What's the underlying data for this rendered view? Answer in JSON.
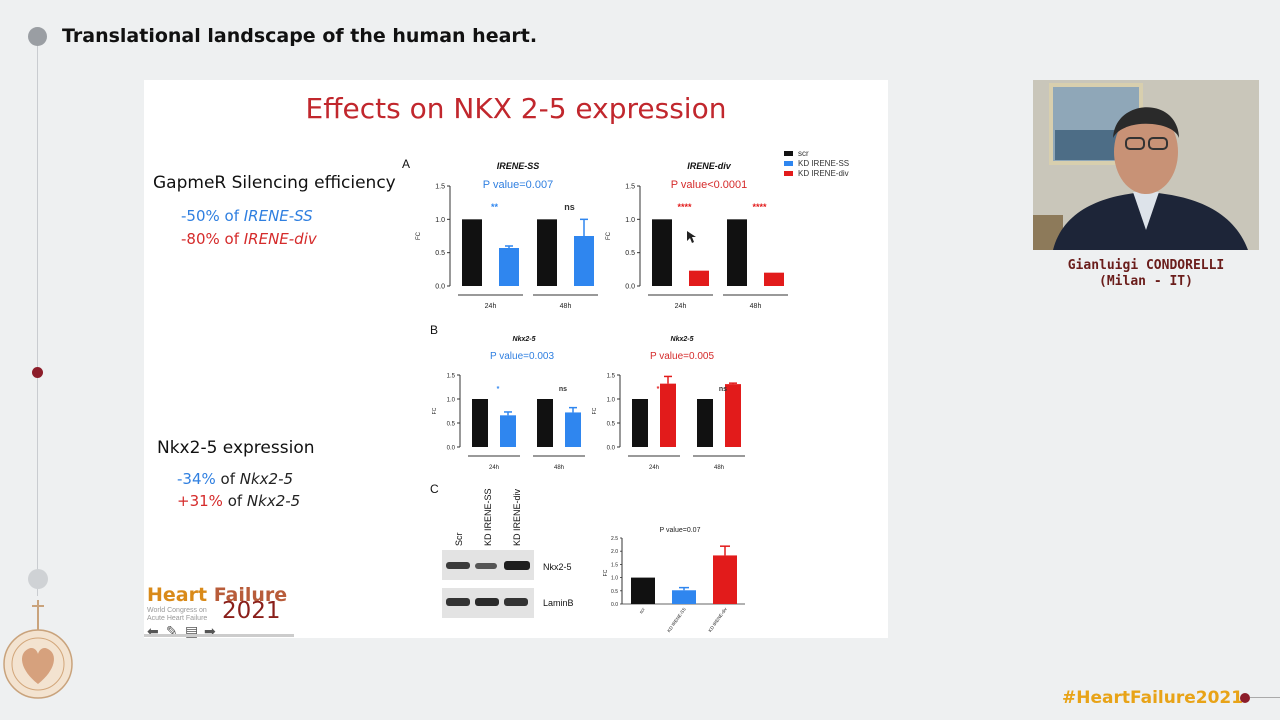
{
  "header": {
    "title": "Translational landscape of the human heart."
  },
  "slide": {
    "title": "Effects on NKX 2-5 expression",
    "gapmer": {
      "heading": "GapmeR Silencing efficiency",
      "line1_value": "-50% of ",
      "line1_gene": "IRENE-SS",
      "line2_value": "-80% of ",
      "line2_gene": "IRENE-div"
    },
    "nkx": {
      "heading": "Nkx2-5 expression",
      "line1_value": "-34%",
      "line1_of": " of ",
      "line1_gene": "Nkx2-5",
      "line2_value": "+31%",
      "line2_of": " of ",
      "line2_gene": "Nkx2-5"
    },
    "panels": {
      "a": "A",
      "b": "B",
      "c": "C"
    },
    "legend": {
      "scr": "scr",
      "kd_ss": "KD IRENE-SS",
      "kd_div": "KD IRENE-div"
    },
    "blot": {
      "lanes": [
        "Scr",
        "KD IRENE-SS",
        "KD IRENE-div"
      ],
      "band1": "Nkx2-5",
      "band2": "LaminB"
    },
    "logo": {
      "line1a": "Heart ",
      "line1b": "Failure",
      "line2": "World Congress on",
      "line3": "Acute Heart Failure",
      "year": "2021"
    }
  },
  "colors": {
    "black": "#111111",
    "blue": "#2f86ef",
    "red": "#e21b1b",
    "title_red": "#c1272d"
  },
  "chart_data": [
    {
      "type": "bar",
      "title": "IRENE-SS",
      "pvalue": "P value=0.007",
      "ylabel": "FC",
      "yticks": [
        "0.0",
        "0.5",
        "1.0",
        "1.5"
      ],
      "ylim": [
        0,
        1.5
      ],
      "categories": [
        "24h",
        "48h"
      ],
      "series": [
        {
          "name": "scr",
          "values": [
            1.0,
            1.0
          ]
        },
        {
          "name": "KD IRENE-SS",
          "values": [
            0.57,
            0.75
          ],
          "errors": [
            0.03,
            0.25
          ]
        }
      ],
      "annotations": [
        "**",
        "ns"
      ]
    },
    {
      "type": "bar",
      "title": "IRENE-div",
      "pvalue": "P value<0.0001",
      "ylabel": "FC",
      "yticks": [
        "0.0",
        "0.5",
        "1.0",
        "1.5"
      ],
      "ylim": [
        0,
        1.5
      ],
      "categories": [
        "24h",
        "48h"
      ],
      "series": [
        {
          "name": "scr",
          "values": [
            1.0,
            1.0
          ]
        },
        {
          "name": "KD IRENE-div",
          "values": [
            0.23,
            0.2
          ]
        }
      ],
      "annotations": [
        "****",
        "****"
      ]
    },
    {
      "type": "bar",
      "title": "Nkx2-5",
      "pvalue": "P value=0.003",
      "ylabel": "FC",
      "yticks": [
        "0.0",
        "0.5",
        "1.0",
        "1.5"
      ],
      "ylim": [
        0,
        1.5
      ],
      "categories": [
        "24h",
        "48h"
      ],
      "series": [
        {
          "name": "scr",
          "values": [
            1.0,
            1.0
          ]
        },
        {
          "name": "KD IRENE-SS",
          "values": [
            0.66,
            0.72
          ],
          "errors": [
            0.07,
            0.1
          ]
        }
      ],
      "annotations": [
        "*",
        "ns"
      ]
    },
    {
      "type": "bar",
      "title": "Nkx2-5",
      "pvalue": "P value=0.005",
      "ylabel": "FC",
      "yticks": [
        "0.0",
        "0.5",
        "1.0",
        "1.5"
      ],
      "ylim": [
        0,
        1.5
      ],
      "categories": [
        "24h",
        "48h"
      ],
      "series": [
        {
          "name": "scr",
          "values": [
            1.0,
            1.0
          ]
        },
        {
          "name": "KD IRENE-div",
          "values": [
            1.32,
            1.31
          ],
          "errors": [
            0.15,
            0.02
          ]
        }
      ],
      "annotations": [
        "*",
        "ns"
      ]
    },
    {
      "type": "bar",
      "pvalue": "P value=0.07",
      "ylabel": "FC",
      "yticks": [
        "0.0",
        "0.5",
        "1.0",
        "1.5",
        "2.0",
        "2.5"
      ],
      "ylim": [
        0,
        2.5
      ],
      "categories": [
        "scr",
        "KD IRENE-SS",
        "KD IRENE-div"
      ],
      "values": [
        1.0,
        0.52,
        1.84
      ],
      "errors": [
        0,
        0.1,
        0.35
      ]
    }
  ],
  "speaker": {
    "name": "Gianluigi CONDORELLI",
    "affiliation": "(Milan - IT)"
  },
  "footer": {
    "hashtag": "#HeartFailure2021"
  }
}
